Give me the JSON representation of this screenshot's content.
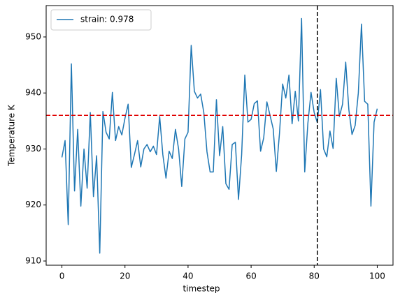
{
  "chart_data": {
    "type": "line",
    "xlabel": "timestep",
    "ylabel": "Temperature K",
    "x": [
      0,
      1,
      2,
      3,
      4,
      5,
      6,
      7,
      8,
      9,
      10,
      11,
      12,
      13,
      14,
      15,
      16,
      17,
      18,
      19,
      20,
      21,
      22,
      23,
      24,
      25,
      26,
      27,
      28,
      29,
      30,
      31,
      32,
      33,
      34,
      35,
      36,
      37,
      38,
      39,
      40,
      41,
      42,
      43,
      44,
      45,
      46,
      47,
      48,
      49,
      50,
      51,
      52,
      53,
      54,
      55,
      56,
      57,
      58,
      59,
      60,
      61,
      62,
      63,
      64,
      65,
      66,
      67,
      68,
      69,
      70,
      71,
      72,
      73,
      74,
      75,
      76,
      77,
      78,
      79,
      80,
      81,
      82,
      83,
      84,
      85,
      86,
      87,
      88,
      89,
      90,
      91,
      92,
      93,
      94,
      95,
      96,
      97,
      98,
      99,
      100
    ],
    "series": [
      {
        "name": "strain: 0.978",
        "color": "#1f77b4",
        "values": [
          928.5,
          931.5,
          916.5,
          945.2,
          922.5,
          933.5,
          919.8,
          930,
          923,
          936.5,
          921.5,
          928.8,
          911.4,
          936.7,
          933,
          931.8,
          940.1,
          931.5,
          934,
          932.5,
          935.5,
          938,
          926.7,
          929,
          931.5,
          926.8,
          930,
          930.8,
          929.5,
          930.5,
          929,
          935.8,
          929,
          924.8,
          929.6,
          928.3,
          933.5,
          930,
          923.3,
          931.8,
          933,
          948.5,
          940.3,
          939.1,
          939.8,
          936.5,
          929.5,
          925.9,
          925.9,
          938.8,
          928.8,
          934,
          923.8,
          922.8,
          930.8,
          931.2,
          921,
          929,
          943.2,
          934.8,
          935.3,
          938.1,
          938.6,
          929.6,
          932,
          938.4,
          936,
          933.6,
          926,
          932.8,
          941.6,
          939.1,
          943.2,
          934.5,
          940.3,
          935,
          953.3,
          925.9,
          934.6,
          940.1,
          936.5,
          934.7,
          940.6,
          930,
          928.6,
          933.2,
          930.1,
          942.6,
          935.8,
          938,
          945.5,
          937,
          932.6,
          934.2,
          940,
          952.3,
          938.5,
          938,
          919.8,
          934.8,
          937.2
        ]
      }
    ],
    "hline": {
      "value": 936,
      "color": "#e00000"
    },
    "vline": {
      "value": 81,
      "color": "#000000"
    },
    "xlim": [
      -5,
      105
    ],
    "xticks": [
      0,
      20,
      40,
      60,
      80,
      100
    ],
    "ylim": [
      909.25,
      955.6
    ],
    "yticks": [
      910,
      920,
      930,
      940,
      950
    ],
    "legend": "upper left",
    "grid": false
  }
}
